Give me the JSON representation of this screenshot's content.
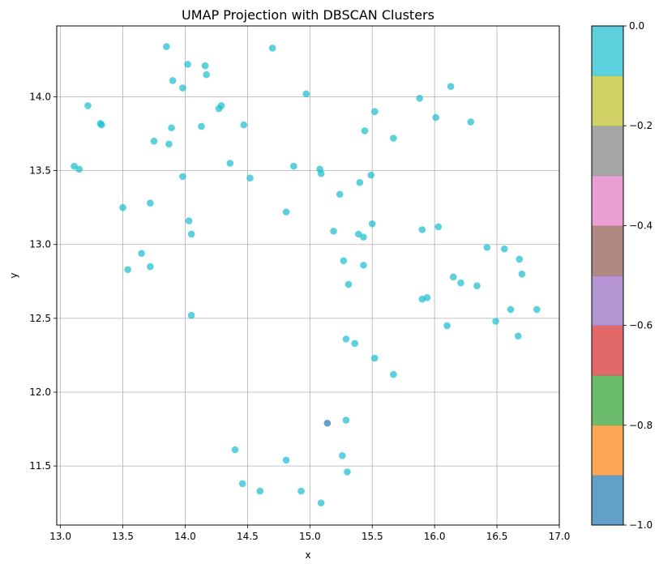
{
  "chart_data": {
    "type": "scatter",
    "title": "UMAP Projection with DBSCAN Clusters",
    "xlabel": "x",
    "ylabel": "y",
    "xlim": [
      12.97,
      17.0
    ],
    "ylim": [
      11.1,
      14.48
    ],
    "xticks": [
      13.0,
      13.5,
      14.0,
      14.5,
      15.0,
      15.5,
      16.0,
      16.5,
      17.0
    ],
    "xtick_labels": [
      "13.0",
      "13.5",
      "14.0",
      "14.5",
      "15.0",
      "15.5",
      "16.0",
      "16.5",
      "17.0"
    ],
    "yticks": [
      11.5,
      12.0,
      12.5,
      13.0,
      13.5,
      14.0
    ],
    "ytick_labels": [
      "11.5",
      "12.0",
      "12.5",
      "13.0",
      "13.5",
      "14.0"
    ],
    "grid": true,
    "colorbar": {
      "range": [
        -1.0,
        0.0
      ],
      "ticks": [
        0.0,
        -0.2,
        -0.4,
        -0.6,
        -0.8,
        -1.0
      ],
      "tick_labels": [
        "0.0",
        "−0.2",
        "−0.4",
        "−0.6",
        "−0.8",
        "−1.0"
      ],
      "colors_bottom_to_top": [
        "#1f77b4",
        "#ff7f0e",
        "#2ca02c",
        "#d62728",
        "#9467bd",
        "#8c564b",
        "#e377c2",
        "#7f7f7f",
        "#bcbd22",
        "#17becf"
      ]
    },
    "series": [
      {
        "cluster": 0,
        "color": "#17becf",
        "points": [
          [
            13.85,
            14.34
          ],
          [
            14.7,
            14.33
          ],
          [
            14.02,
            14.22
          ],
          [
            14.16,
            14.21
          ],
          [
            14.17,
            14.15
          ],
          [
            13.9,
            14.11
          ],
          [
            13.98,
            14.06
          ],
          [
            16.13,
            14.07
          ],
          [
            14.97,
            14.02
          ],
          [
            15.88,
            13.99
          ],
          [
            13.22,
            13.94
          ],
          [
            14.29,
            13.94
          ],
          [
            14.27,
            13.92
          ],
          [
            15.52,
            13.9
          ],
          [
            16.01,
            13.86
          ],
          [
            16.29,
            13.83
          ],
          [
            13.32,
            13.82
          ],
          [
            13.33,
            13.81
          ],
          [
            14.47,
            13.81
          ],
          [
            14.13,
            13.8
          ],
          [
            13.89,
            13.79
          ],
          [
            15.44,
            13.77
          ],
          [
            15.67,
            13.72
          ],
          [
            13.75,
            13.7
          ],
          [
            13.87,
            13.68
          ],
          [
            14.36,
            13.55
          ],
          [
            13.11,
            13.53
          ],
          [
            14.87,
            13.53
          ],
          [
            13.15,
            13.51
          ],
          [
            15.08,
            13.51
          ],
          [
            15.09,
            13.48
          ],
          [
            15.49,
            13.47
          ],
          [
            13.98,
            13.46
          ],
          [
            14.52,
            13.45
          ],
          [
            15.4,
            13.42
          ],
          [
            15.24,
            13.34
          ],
          [
            13.72,
            13.28
          ],
          [
            13.5,
            13.25
          ],
          [
            14.81,
            13.22
          ],
          [
            14.03,
            13.16
          ],
          [
            15.5,
            13.14
          ],
          [
            16.03,
            13.12
          ],
          [
            15.9,
            13.1
          ],
          [
            15.19,
            13.09
          ],
          [
            14.05,
            13.07
          ],
          [
            15.39,
            13.07
          ],
          [
            15.43,
            13.05
          ],
          [
            16.42,
            12.98
          ],
          [
            16.56,
            12.97
          ],
          [
            13.65,
            12.94
          ],
          [
            16.68,
            12.9
          ],
          [
            15.27,
            12.89
          ],
          [
            15.43,
            12.86
          ],
          [
            13.72,
            12.85
          ],
          [
            13.54,
            12.83
          ],
          [
            16.7,
            12.8
          ],
          [
            16.15,
            12.78
          ],
          [
            16.21,
            12.74
          ],
          [
            15.31,
            12.73
          ],
          [
            16.34,
            12.72
          ],
          [
            15.94,
            12.64
          ],
          [
            15.9,
            12.63
          ],
          [
            16.61,
            12.56
          ],
          [
            16.82,
            12.56
          ],
          [
            14.05,
            12.52
          ],
          [
            16.49,
            12.48
          ],
          [
            16.1,
            12.45
          ],
          [
            16.67,
            12.38
          ],
          [
            15.29,
            12.36
          ],
          [
            15.36,
            12.33
          ],
          [
            15.52,
            12.23
          ],
          [
            15.67,
            12.12
          ],
          [
            15.29,
            11.81
          ],
          [
            14.4,
            11.61
          ],
          [
            15.26,
            11.57
          ],
          [
            14.81,
            11.54
          ],
          [
            15.3,
            11.46
          ],
          [
            14.46,
            11.38
          ],
          [
            14.6,
            11.33
          ],
          [
            14.93,
            11.33
          ],
          [
            15.09,
            11.25
          ]
        ]
      },
      {
        "cluster": -1,
        "color": "#1f77b4",
        "points": [
          [
            15.14,
            11.79
          ]
        ]
      }
    ]
  }
}
